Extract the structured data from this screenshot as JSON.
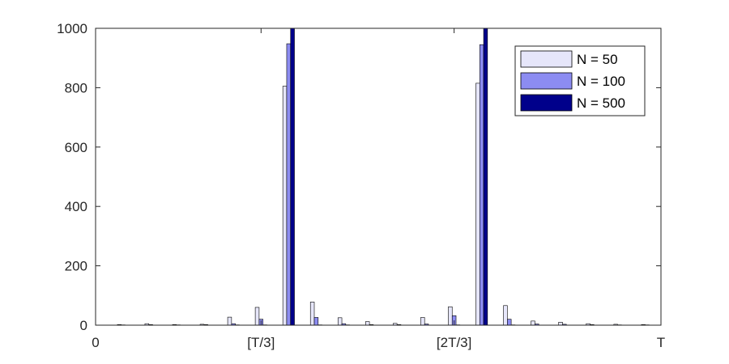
{
  "chart_data": {
    "type": "bar",
    "title": "",
    "xlabel": "",
    "ylabel": "",
    "ylim": [
      0,
      1000
    ],
    "yticks": [
      "0",
      "200",
      "400",
      "600",
      "800",
      "1000"
    ],
    "xlim": [
      0,
      20.5
    ],
    "xticks": [
      {
        "label": "0",
        "pos": 0
      },
      {
        "label": "[T/3]",
        "pos": 6
      },
      {
        "label": "[2T/3]",
        "pos": 13
      },
      {
        "label": "T",
        "pos": 20.5
      }
    ],
    "legend_position": "top-right",
    "grid": false,
    "categories": [
      1,
      2,
      3,
      4,
      5,
      6,
      7,
      8,
      9,
      10,
      11,
      12,
      13,
      14,
      15,
      16,
      17,
      18,
      19,
      20
    ],
    "series": [
      {
        "name": "N = 50",
        "color": "#e6e6fa",
        "values": [
          2,
          5,
          2,
          3,
          27,
          60,
          805,
          78,
          25,
          12,
          6,
          26,
          62,
          815,
          66,
          14,
          10,
          5,
          3,
          2
        ]
      },
      {
        "name": "N = 100",
        "color": "#8c8cf2",
        "values": [
          1,
          2,
          1,
          2,
          5,
          20,
          948,
          26,
          5,
          2,
          2,
          4,
          32,
          945,
          20,
          4,
          3,
          2,
          1,
          1
        ]
      },
      {
        "name": "N = 500",
        "color": "#00008b",
        "values": [
          0,
          0,
          0,
          0,
          1,
          1,
          1000,
          1,
          1,
          0,
          0,
          0,
          1,
          1000,
          1,
          0,
          0,
          0,
          0,
          0
        ]
      }
    ]
  }
}
